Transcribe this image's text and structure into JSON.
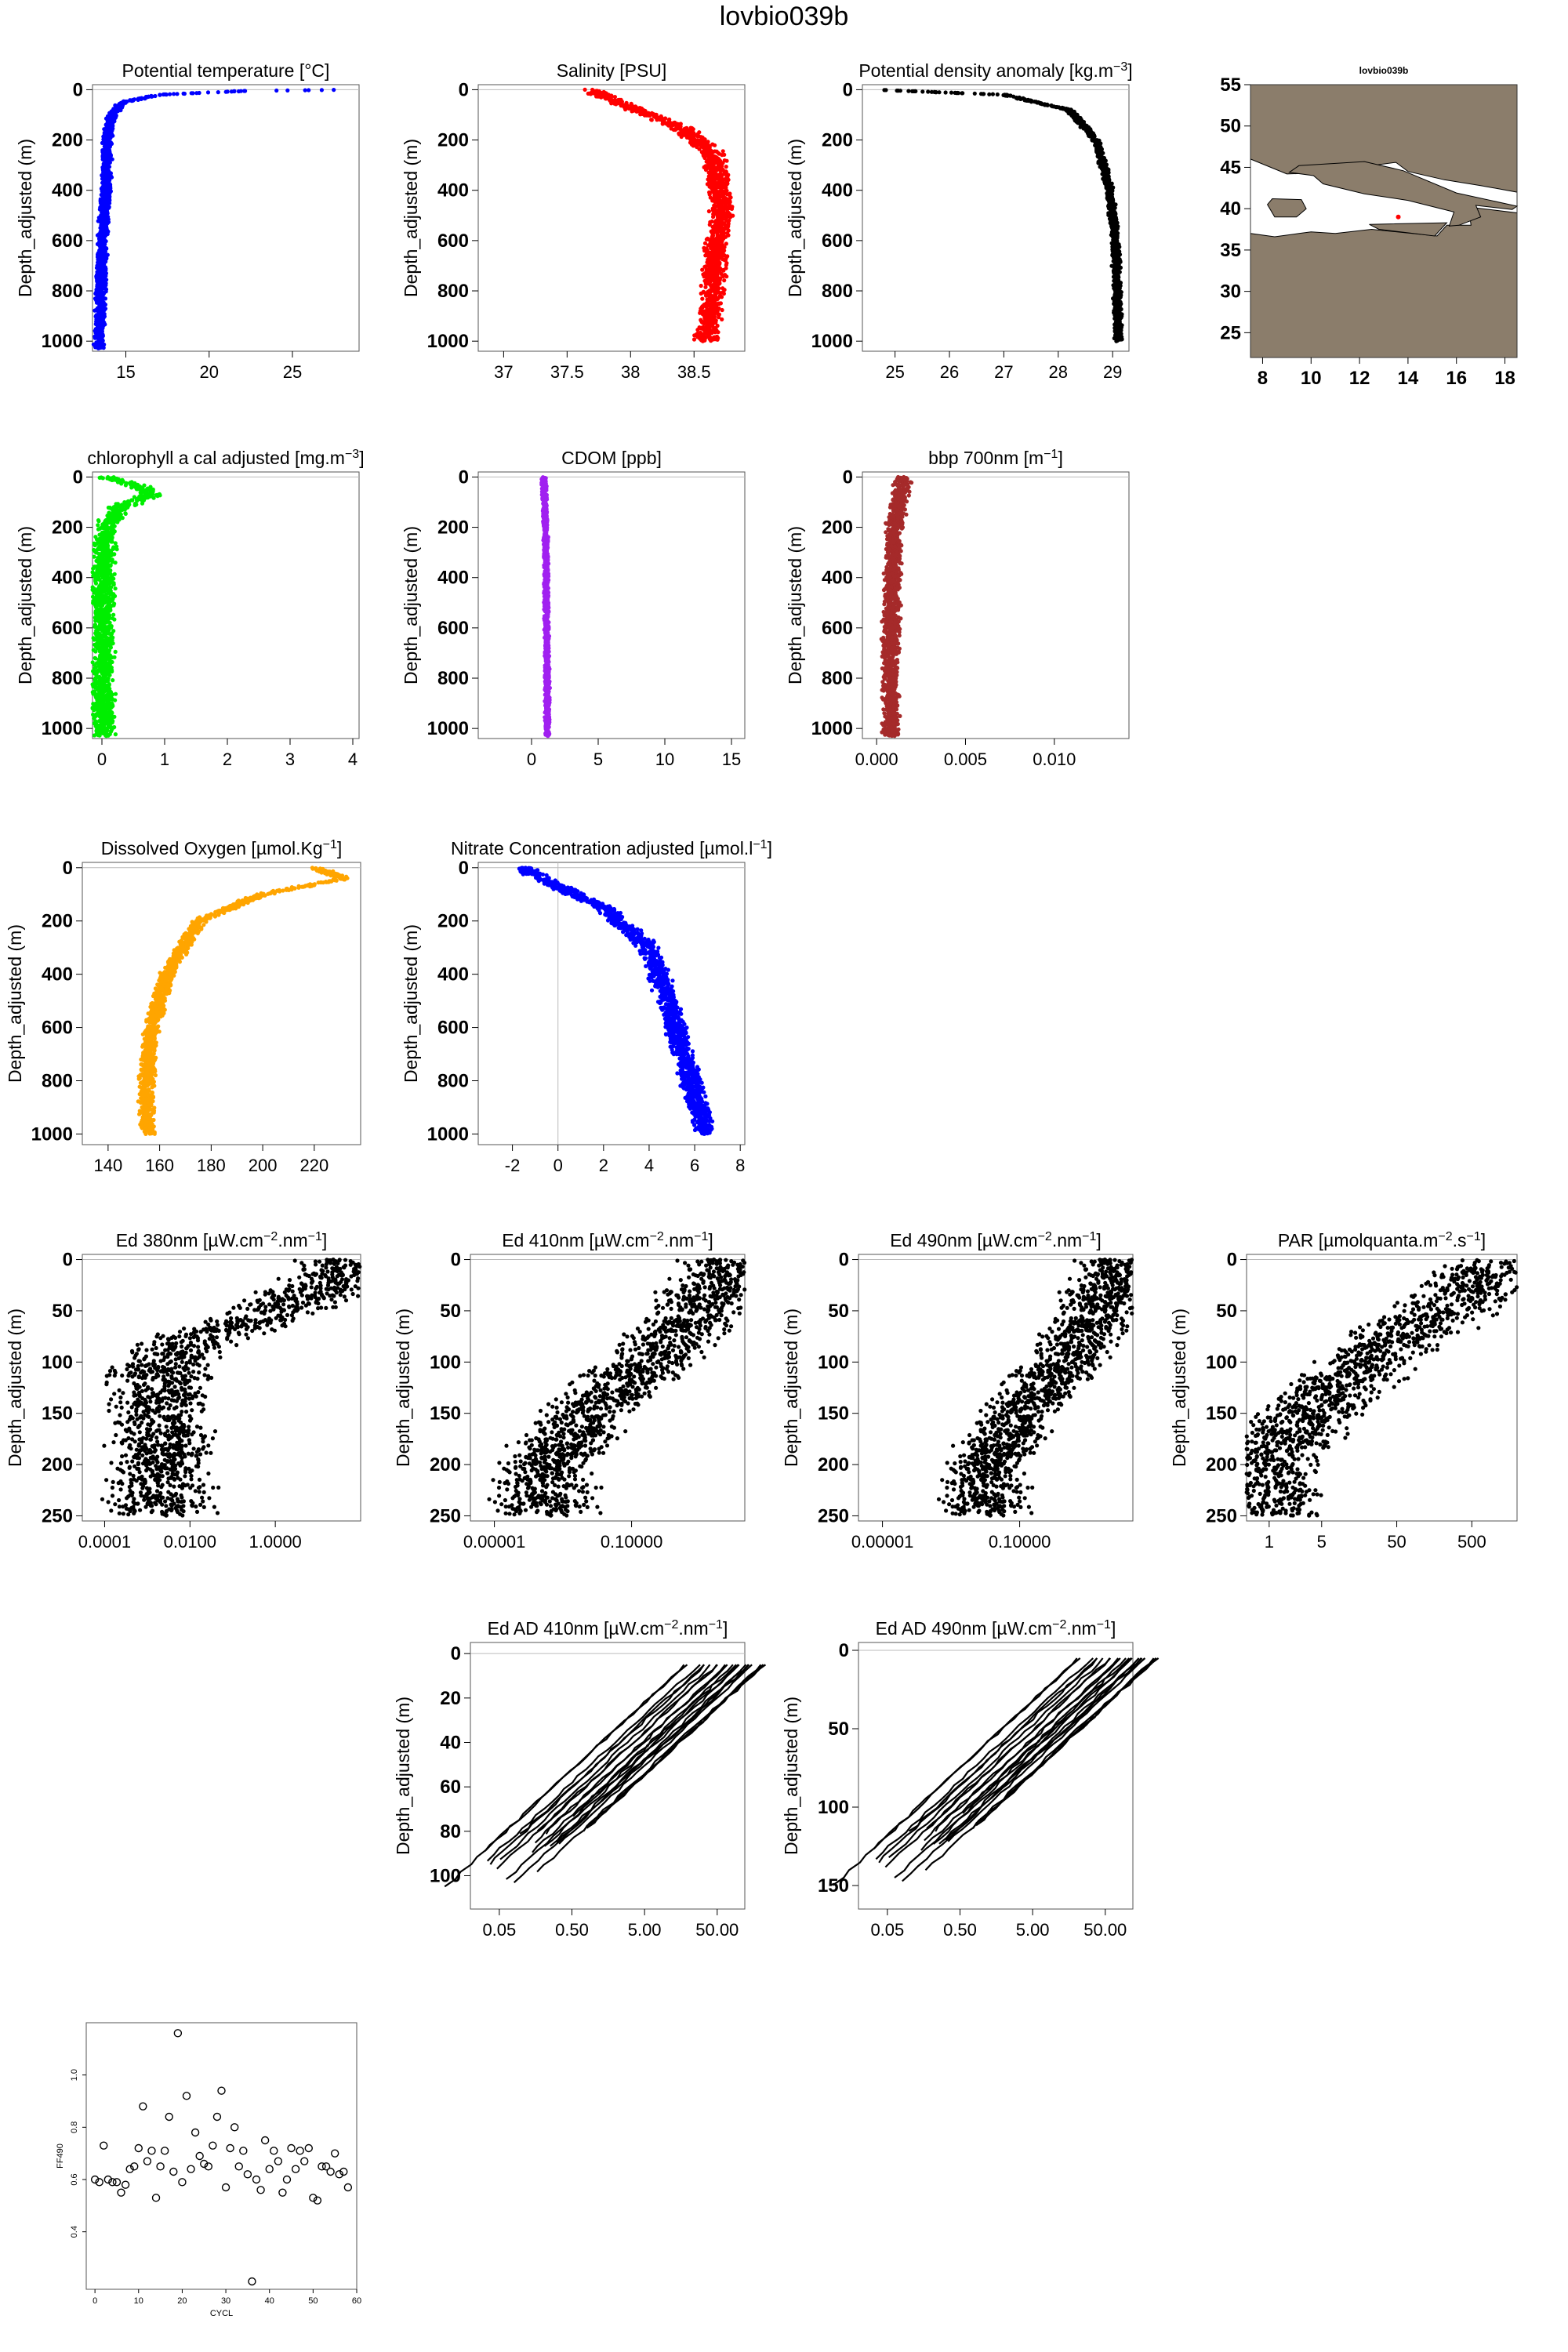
{
  "page": {
    "title": "lovbio039b"
  },
  "colors": {
    "blue": "#0000ff",
    "red": "#ff0000",
    "black": "#000000",
    "green": "#00ee00",
    "purple": "#a020f0",
    "brown": "#a52a2a",
    "orange": "#ffa500",
    "land": "#8b7d6b",
    "sea": "#ffffff"
  },
  "chart_data": [
    {
      "id": "temp",
      "type": "scatter",
      "title": "Potential temperature [°C]",
      "ylabel": "Depth_adjusted (m)",
      "xlim": [
        13,
        29
      ],
      "ylim": [
        1040,
        -20
      ],
      "xticks": [
        15,
        20,
        25
      ],
      "yticks": [
        0,
        200,
        400,
        600,
        800,
        1000
      ],
      "color": "blue",
      "y_reversed": true,
      "profile": [
        [
          28.5,
          0
        ],
        [
          22,
          5
        ],
        [
          17,
          20
        ],
        [
          14.8,
          50
        ],
        [
          14.2,
          100
        ],
        [
          14,
          150
        ],
        [
          13.9,
          200
        ],
        [
          13.8,
          400
        ],
        [
          13.6,
          600
        ],
        [
          13.5,
          800
        ],
        [
          13.4,
          1000
        ],
        [
          13.4,
          1030
        ]
      ],
      "spread": 0.5
    },
    {
      "id": "sal",
      "type": "scatter",
      "title": "Salinity [PSU]",
      "ylabel": "Depth_adjusted (m)",
      "xlim": [
        36.8,
        38.9
      ],
      "ylim": [
        1040,
        -20
      ],
      "xticks": [
        37.0,
        37.5,
        38.0,
        38.5
      ],
      "yticks": [
        0,
        200,
        400,
        600,
        800,
        1000
      ],
      "color": "red",
      "y_reversed": true,
      "profile": [
        [
          37.7,
          0
        ],
        [
          37.9,
          50
        ],
        [
          38.4,
          150
        ],
        [
          38.65,
          250
        ],
        [
          38.7,
          400
        ],
        [
          38.72,
          500
        ],
        [
          38.68,
          600
        ],
        [
          38.65,
          800
        ],
        [
          38.6,
          1000
        ]
      ],
      "spread": 0.15
    },
    {
      "id": "dens",
      "type": "scatter",
      "title": "Potential density anomaly [kg.m^-3]",
      "ylabel": "Depth_adjusted (m)",
      "xlim": [
        24.4,
        29.3
      ],
      "ylim": [
        1040,
        -20
      ],
      "xticks": [
        25,
        26,
        27,
        28,
        29
      ],
      "yticks": [
        0,
        200,
        400,
        600,
        800,
        1000
      ],
      "color": "black",
      "y_reversed": true,
      "profile": [
        [
          24.6,
          0
        ],
        [
          27,
          20
        ],
        [
          28.2,
          80
        ],
        [
          28.7,
          200
        ],
        [
          28.95,
          400
        ],
        [
          29.05,
          600
        ],
        [
          29.08,
          800
        ],
        [
          29.1,
          1000
        ]
      ],
      "spread": 0.12
    },
    {
      "id": "chl",
      "type": "scatter",
      "title": "chlorophyll a cal adjusted [mg.m^-3]",
      "ylabel": "Depth_adjusted (m)",
      "xlim": [
        -0.15,
        4.1
      ],
      "ylim": [
        1040,
        -20
      ],
      "xticks": [
        0,
        1,
        2,
        3,
        4
      ],
      "yticks": [
        0,
        200,
        400,
        600,
        800,
        1000
      ],
      "color": "green",
      "y_reversed": true,
      "profile": [
        [
          0.1,
          0
        ],
        [
          0.6,
          40
        ],
        [
          0.8,
          70
        ],
        [
          0.3,
          120
        ],
        [
          0.05,
          200
        ],
        [
          0.02,
          400
        ],
        [
          0.02,
          1030
        ]
      ],
      "spread": 0.3
    },
    {
      "id": "cdom",
      "type": "scatter",
      "title": "CDOM [ppb]",
      "ylabel": "Depth_adjusted (m)",
      "xlim": [
        -4,
        16
      ],
      "ylim": [
        1040,
        -20
      ],
      "xticks": [
        0,
        5,
        10,
        15
      ],
      "yticks": [
        0,
        200,
        400,
        600,
        800,
        1000
      ],
      "color": "purple",
      "y_reversed": true,
      "profile": [
        [
          0.9,
          0
        ],
        [
          1.0,
          100
        ],
        [
          1.1,
          400
        ],
        [
          1.15,
          700
        ],
        [
          1.2,
          1030
        ]
      ],
      "spread": 0.3
    },
    {
      "id": "bbp",
      "type": "scatter",
      "title": "bbp 700nm [m^-1]",
      "ylabel": "Depth_adjusted (m)",
      "xlim": [
        -0.0008,
        0.0142
      ],
      "ylim": [
        1040,
        -20
      ],
      "xticks": [
        0.0,
        0.005,
        0.01
      ],
      "xtick_labels": [
        "0.000",
        "0.005",
        "0.010"
      ],
      "yticks": [
        0,
        200,
        400,
        600,
        800,
        1000
      ],
      "color": "brown",
      "y_reversed": true,
      "profile": [
        [
          0.0015,
          0
        ],
        [
          0.001,
          200
        ],
        [
          0.0008,
          600
        ],
        [
          0.0008,
          1030
        ]
      ],
      "spread": 0.0008
    },
    {
      "id": "oxy",
      "type": "scatter",
      "title": "Dissolved Oxygen [µmol.Kg^-1]",
      "ylabel": "Depth_adjusted (m)",
      "xlim": [
        130,
        238
      ],
      "ylim": [
        1040,
        -20
      ],
      "xticks": [
        140,
        160,
        180,
        200,
        220
      ],
      "yticks": [
        0,
        200,
        400,
        600,
        800,
        1000
      ],
      "color": "orange",
      "y_reversed": true,
      "profile": [
        [
          220,
          0
        ],
        [
          232,
          40
        ],
        [
          200,
          100
        ],
        [
          175,
          200
        ],
        [
          163,
          400
        ],
        [
          157,
          600
        ],
        [
          155,
          800
        ],
        [
          155,
          1000
        ]
      ],
      "spread": 5
    },
    {
      "id": "nitrate",
      "type": "scatter",
      "title": "Nitrate Concentration adjusted [µmol.l^-1]",
      "ylabel": "Depth_adjusted (m)",
      "xlim": [
        -3.5,
        8.2
      ],
      "ylim": [
        1040,
        -20
      ],
      "xticks": [
        -2,
        0,
        2,
        4,
        6,
        8
      ],
      "yticks": [
        0,
        200,
        400,
        600,
        800,
        1000
      ],
      "color": "blue",
      "y_reversed": true,
      "vline": 0,
      "profile": [
        [
          -1.5,
          0
        ],
        [
          -0.5,
          50
        ],
        [
          2,
          150
        ],
        [
          4,
          300
        ],
        [
          4.8,
          500
        ],
        [
          5.5,
          700
        ],
        [
          6.5,
          1000
        ]
      ],
      "spread": 0.8
    },
    {
      "id": "ed380",
      "type": "scatter",
      "title": "Ed 380nm [µW.cm^-2.nm^-1]",
      "ylabel": "Depth_adjusted (m)",
      "log_x": true,
      "xlim": [
        3e-05,
        100
      ],
      "ylim": [
        255,
        -5
      ],
      "xticks": [
        0.0001,
        0.01,
        1
      ],
      "xtick_labels": [
        "0.0001",
        "0.0100",
        "1.0000"
      ],
      "yticks": [
        0,
        50,
        100,
        150,
        200,
        250
      ],
      "color": "black",
      "y_reversed": true,
      "profile": [
        [
          60,
          0
        ],
        [
          10,
          30
        ],
        [
          0.3,
          60
        ],
        [
          0.01,
          80
        ],
        [
          0.002,
          100
        ],
        [
          0.002,
          250
        ]
      ],
      "spread": 1
    },
    {
      "id": "ed410",
      "type": "scatter",
      "title": "Ed 410nm [µW.cm^-2.nm^-1]",
      "ylabel": "Depth_adjusted (m)",
      "log_x": true,
      "xlim": [
        2e-06,
        200
      ],
      "ylim": [
        255,
        -5
      ],
      "xticks": [
        1e-05,
        0.1
      ],
      "xtick_labels": [
        "0.00001",
        "0.10000"
      ],
      "yticks": [
        0,
        50,
        100,
        150,
        200,
        250
      ],
      "color": "black",
      "y_reversed": true,
      "profile": [
        [
          80,
          0
        ],
        [
          10,
          50
        ],
        [
          0.3,
          100
        ],
        [
          0.005,
          150
        ],
        [
          0.0003,
          200
        ],
        [
          0.0003,
          250
        ]
      ],
      "spread": 1.2
    },
    {
      "id": "ed490",
      "type": "scatter",
      "title": "Ed 490nm [µW.cm^-2.nm^-1]",
      "ylabel": "Depth_adjusted (m)",
      "log_x": true,
      "xlim": [
        2e-06,
        200
      ],
      "ylim": [
        255,
        -5
      ],
      "xticks": [
        1e-05,
        0.1
      ],
      "xtick_labels": [
        "0.00001",
        "0.10000"
      ],
      "yticks": [
        0,
        50,
        100,
        150,
        200,
        250
      ],
      "color": "black",
      "y_reversed": true,
      "profile": [
        [
          80,
          0
        ],
        [
          20,
          50
        ],
        [
          2,
          100
        ],
        [
          0.1,
          150
        ],
        [
          0.01,
          200
        ],
        [
          0.01,
          250
        ]
      ],
      "spread": 1
    },
    {
      "id": "par",
      "type": "scatter",
      "title": "PAR [µmolquanta.m^-2.s^-1]",
      "ylabel": "Depth_adjusted (m)",
      "log_x": true,
      "xlim": [
        0.5,
        2000
      ],
      "ylim": [
        255,
        -5
      ],
      "xticks": [
        1,
        5,
        50,
        500
      ],
      "yticks": [
        0,
        50,
        100,
        150,
        200,
        250
      ],
      "color": "black",
      "y_reversed": true,
      "profile": [
        [
          1200,
          0
        ],
        [
          200,
          50
        ],
        [
          20,
          100
        ],
        [
          3,
          150
        ],
        [
          1,
          200
        ],
        [
          0.9,
          250
        ]
      ],
      "spread": 0.6
    },
    {
      "id": "edad410",
      "type": "line",
      "title": "Ed AD 410nm [µW.cm^-2.nm^-1]",
      "ylabel": "Depth_adjusted (m)",
      "log_x": true,
      "xlim": [
        0.02,
        120
      ],
      "ylim": [
        115,
        -5
      ],
      "xticks": [
        0.05,
        0.5,
        5,
        50
      ],
      "xtick_labels": [
        "0.05",
        "0.50",
        "5.00",
        "50.00"
      ],
      "yticks": [
        0,
        20,
        40,
        60,
        80,
        100
      ],
      "color": "black",
      "y_reversed": true,
      "profile": [
        [
          60,
          5
        ],
        [
          0.03,
          105
        ]
      ],
      "spread": 0.6
    },
    {
      "id": "edad490",
      "type": "line",
      "title": "Ed AD 490nm [µW.cm^-2.nm^-1]",
      "ylabel": "Depth_adjusted (m)",
      "log_x": true,
      "xlim": [
        0.02,
        120
      ],
      "ylim": [
        165,
        -5
      ],
      "xticks": [
        0.05,
        0.5,
        5,
        50
      ],
      "xtick_labels": [
        "0.05",
        "0.50",
        "5.00",
        "50.00"
      ],
      "yticks": [
        0,
        50,
        100,
        150
      ],
      "color": "black",
      "y_reversed": true,
      "profile": [
        [
          70,
          5
        ],
        [
          0.03,
          150
        ]
      ],
      "spread": 0.6
    },
    {
      "id": "ff",
      "type": "scatter",
      "title": "",
      "xlabel": "CYCL",
      "ylabel": "FF490",
      "xlim": [
        -2,
        60
      ],
      "ylim": [
        0.18,
        1.2
      ],
      "xticks": [
        0,
        10,
        20,
        30,
        40,
        50,
        60
      ],
      "yticks": [
        0.4,
        0.6,
        0.8,
        1.0
      ],
      "ytick_labels": [
        "0.4",
        "0.6",
        "0.8",
        "1.0"
      ],
      "color": "black",
      "y_reversed": false,
      "open_circles": true,
      "points": [
        [
          0,
          0.6
        ],
        [
          1,
          0.59
        ],
        [
          2,
          0.73
        ],
        [
          3,
          0.6
        ],
        [
          4,
          0.59
        ],
        [
          5,
          0.59
        ],
        [
          6,
          0.55
        ],
        [
          7,
          0.58
        ],
        [
          8,
          0.64
        ],
        [
          9,
          0.65
        ],
        [
          10,
          0.72
        ],
        [
          11,
          0.88
        ],
        [
          12,
          0.67
        ],
        [
          13,
          0.71
        ],
        [
          14,
          0.53
        ],
        [
          15,
          0.65
        ],
        [
          16,
          0.71
        ],
        [
          17,
          0.84
        ],
        [
          18,
          0.63
        ],
        [
          19,
          1.16
        ],
        [
          20,
          0.59
        ],
        [
          21,
          0.92
        ],
        [
          22,
          0.64
        ],
        [
          23,
          0.78
        ],
        [
          24,
          0.69
        ],
        [
          25,
          0.66
        ],
        [
          26,
          0.65
        ],
        [
          27,
          0.73
        ],
        [
          28,
          0.84
        ],
        [
          29,
          0.94
        ],
        [
          30,
          0.57
        ],
        [
          31,
          0.72
        ],
        [
          32,
          0.8
        ],
        [
          33,
          0.65
        ],
        [
          34,
          0.71
        ],
        [
          35,
          0.62
        ],
        [
          36,
          0.21
        ],
        [
          37,
          0.6
        ],
        [
          38,
          0.56
        ],
        [
          39,
          0.75
        ],
        [
          40,
          0.64
        ],
        [
          41,
          0.71
        ],
        [
          42,
          0.67
        ],
        [
          43,
          0.55
        ],
        [
          44,
          0.6
        ],
        [
          45,
          0.72
        ],
        [
          46,
          0.64
        ],
        [
          47,
          0.71
        ],
        [
          48,
          0.67
        ],
        [
          49,
          0.72
        ],
        [
          50,
          0.53
        ],
        [
          51,
          0.52
        ],
        [
          52,
          0.65
        ],
        [
          53,
          0.65
        ],
        [
          54,
          0.63
        ],
        [
          55,
          0.7
        ],
        [
          56,
          0.62
        ],
        [
          57,
          0.63
        ],
        [
          58,
          0.57
        ]
      ]
    }
  ],
  "map": {
    "title": "lovbio039b",
    "xlim": [
      7.5,
      18.5
    ],
    "ylim": [
      22,
      55
    ],
    "xticks": [
      8,
      10,
      12,
      14,
      16,
      18
    ],
    "yticks": [
      25,
      30,
      35,
      40,
      45,
      50,
      55
    ]
  }
}
